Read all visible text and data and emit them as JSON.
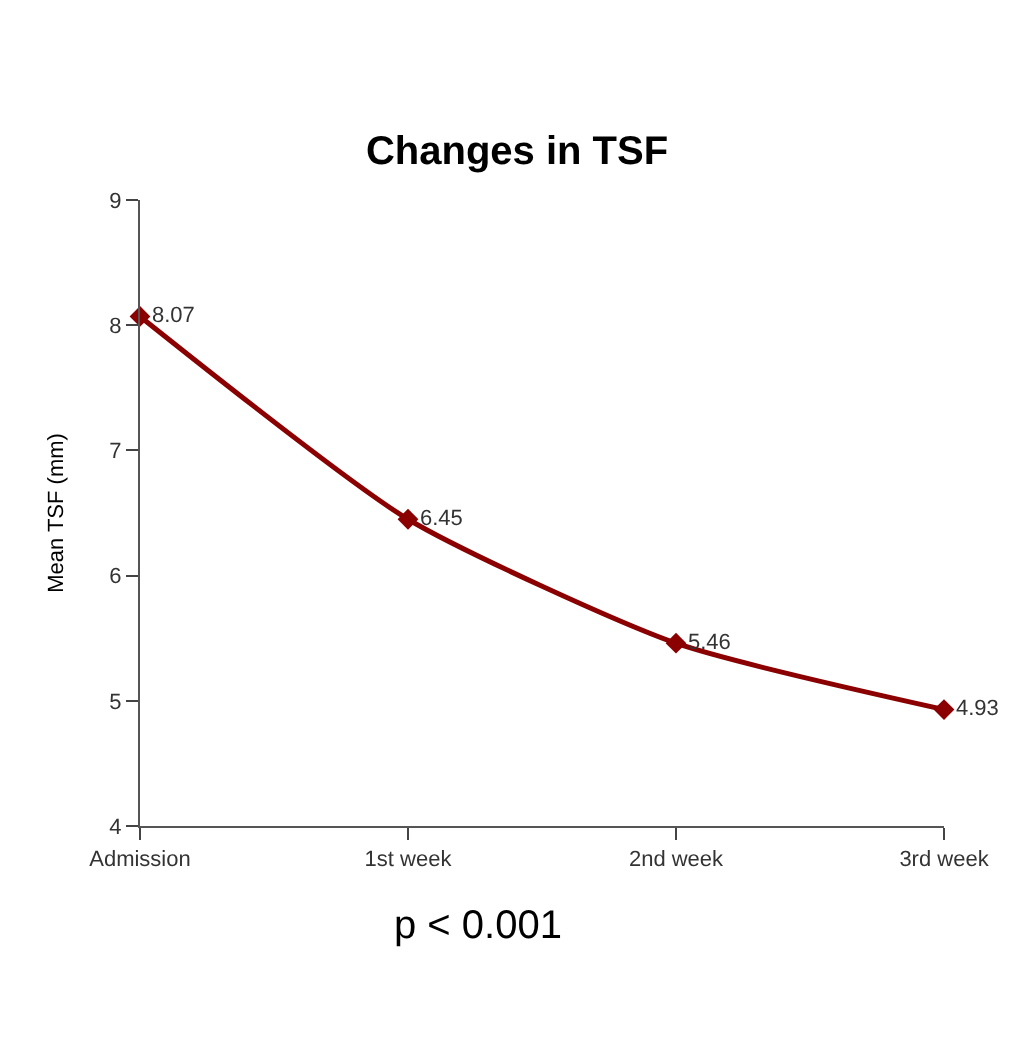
{
  "chart_data": {
    "type": "line",
    "title": "Changes in TSF",
    "ylabel": "Mean TSF (mm)",
    "categories": [
      "Admission",
      "1st week",
      "2nd week",
      "3rd week"
    ],
    "series": [
      {
        "color": "#8b0000",
        "values": [
          8.07,
          6.45,
          5.46,
          4.93
        ]
      }
    ],
    "ylim": [
      4,
      9
    ],
    "yticks": [
      4,
      5,
      6,
      7,
      8,
      9
    ],
    "marker": "diamond",
    "line_style": "solid",
    "data_labels": true,
    "annotations": [
      "p < 0.001"
    ]
  }
}
